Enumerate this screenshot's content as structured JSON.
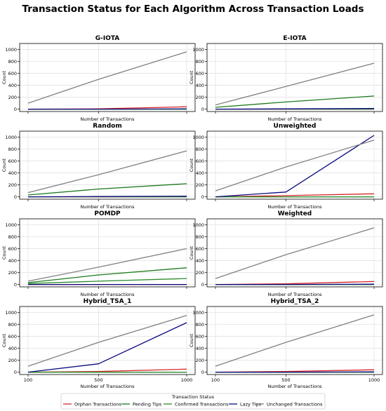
{
  "chart_data": {
    "type": "line",
    "title": "Transaction Status for Each Algorithm Across Transaction Loads",
    "xlabel": "Number of Transactions",
    "ylabel": "Count",
    "x": [
      100,
      500,
      1000
    ],
    "x_tick_labels": [
      "100",
      "500",
      "1000"
    ],
    "ylim": [
      -40,
      1100
    ],
    "y_ticks": [
      0,
      200,
      400,
      600,
      800,
      1000
    ],
    "grid": true,
    "legend": {
      "title": "Transaction Status",
      "placement": "bottom-center",
      "entries": [
        {
          "name": "Orphan Transactions",
          "color": "#d62728"
        },
        {
          "name": "Pending Tips",
          "color": "#1a7a1a"
        },
        {
          "name": "Confirmed Transactions",
          "color": "#2e8b2e"
        },
        {
          "name": "Lazy Tips",
          "color": "#0a0a80"
        },
        {
          "name": "Unchanged Transactions",
          "color": "#808080"
        }
      ]
    },
    "panels": [
      {
        "title": "G-IOTA",
        "series": [
          {
            "name": "Orphan Transactions",
            "values": [
              0,
              5,
              40
            ]
          },
          {
            "name": "Pending Tips",
            "values": [
              0,
              0,
              0
            ]
          },
          {
            "name": "Confirmed Transactions",
            "values": [
              0,
              0,
              0
            ]
          },
          {
            "name": "Lazy Tips",
            "values": [
              0,
              0,
              5
            ]
          },
          {
            "name": "Unchanged Transactions",
            "values": [
              100,
              500,
              960
            ]
          }
        ]
      },
      {
        "title": "E-IOTA",
        "series": [
          {
            "name": "Orphan Transactions",
            "values": [
              0,
              0,
              0
            ]
          },
          {
            "name": "Pending Tips",
            "values": [
              30,
              120,
              220
            ]
          },
          {
            "name": "Confirmed Transactions",
            "values": [
              0,
              0,
              0
            ]
          },
          {
            "name": "Lazy Tips",
            "values": [
              0,
              5,
              10
            ]
          },
          {
            "name": "Unchanged Transactions",
            "values": [
              70,
              380,
              770
            ]
          }
        ]
      },
      {
        "title": "Random",
        "series": [
          {
            "name": "Orphan Transactions",
            "values": [
              0,
              0,
              0
            ]
          },
          {
            "name": "Pending Tips",
            "values": [
              30,
              130,
              220
            ]
          },
          {
            "name": "Confirmed Transactions",
            "values": [
              0,
              0,
              0
            ]
          },
          {
            "name": "Lazy Tips",
            "values": [
              0,
              5,
              10
            ]
          },
          {
            "name": "Unchanged Transactions",
            "values": [
              70,
              370,
              770
            ]
          }
        ]
      },
      {
        "title": "Unweighted",
        "series": [
          {
            "name": "Orphan Transactions",
            "values": [
              0,
              20,
              50
            ]
          },
          {
            "name": "Pending Tips",
            "values": [
              0,
              0,
              0
            ]
          },
          {
            "name": "Confirmed Transactions",
            "values": [
              0,
              0,
              0
            ]
          },
          {
            "name": "Lazy Tips",
            "values": [
              0,
              80,
              1030
            ]
          },
          {
            "name": "Unchanged Transactions",
            "values": [
              100,
              500,
              950
            ]
          }
        ]
      },
      {
        "title": "POMDP",
        "series": [
          {
            "name": "Orphan Transactions",
            "values": [
              0,
              0,
              0
            ]
          },
          {
            "name": "Pending Tips",
            "values": [
              30,
              160,
              280
            ]
          },
          {
            "name": "Confirmed Transactions",
            "values": [
              15,
              55,
              100
            ]
          },
          {
            "name": "Lazy Tips",
            "values": [
              0,
              0,
              0
            ]
          },
          {
            "name": "Unchanged Transactions",
            "values": [
              55,
              290,
              600
            ]
          }
        ]
      },
      {
        "title": "Weighted",
        "series": [
          {
            "name": "Orphan Transactions",
            "values": [
              0,
              10,
              50
            ]
          },
          {
            "name": "Pending Tips",
            "values": [
              0,
              0,
              0
            ]
          },
          {
            "name": "Confirmed Transactions",
            "values": [
              0,
              0,
              0
            ]
          },
          {
            "name": "Lazy Tips",
            "values": [
              0,
              0,
              5
            ]
          },
          {
            "name": "Unchanged Transactions",
            "values": [
              100,
              500,
              950
            ]
          }
        ]
      },
      {
        "title": "Hybrid_TSA_1",
        "series": [
          {
            "name": "Orphan Transactions",
            "values": [
              0,
              10,
              50
            ]
          },
          {
            "name": "Pending Tips",
            "values": [
              0,
              0,
              0
            ]
          },
          {
            "name": "Confirmed Transactions",
            "values": [
              0,
              0,
              0
            ]
          },
          {
            "name": "Lazy Tips",
            "values": [
              0,
              140,
              830
            ]
          },
          {
            "name": "Unchanged Transactions",
            "values": [
              100,
              500,
              950
            ]
          }
        ]
      },
      {
        "title": "Hybrid_TSA_2",
        "series": [
          {
            "name": "Orphan Transactions",
            "values": [
              0,
              10,
              40
            ]
          },
          {
            "name": "Pending Tips",
            "values": [
              0,
              0,
              0
            ]
          },
          {
            "name": "Confirmed Transactions",
            "values": [
              0,
              0,
              0
            ]
          },
          {
            "name": "Lazy Tips",
            "values": [
              0,
              0,
              5
            ]
          },
          {
            "name": "Unchanged Transactions",
            "values": [
              100,
              500,
              960
            ]
          }
        ]
      }
    ]
  }
}
